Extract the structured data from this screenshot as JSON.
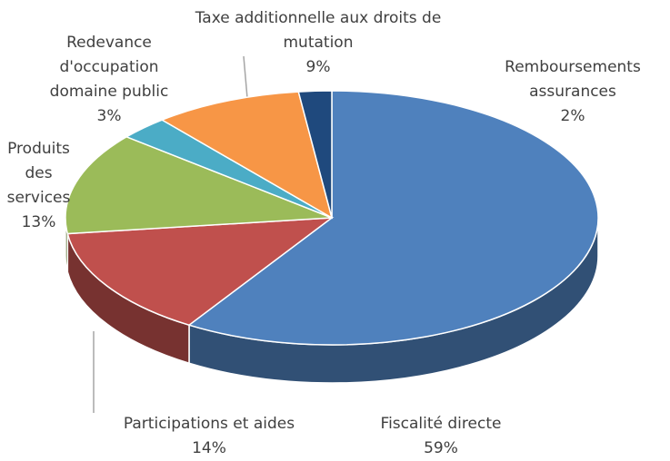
{
  "chart_data": {
    "type": "pie3d",
    "categories": [
      "Fiscalité directe",
      "Participations et aides",
      "Produits des services",
      "Redevance d'occupation domaine public",
      "Taxe additionnelle aux droits de mutation",
      "Remboursements assurances"
    ],
    "values": [
      59,
      14,
      13,
      3,
      9,
      2
    ],
    "value_labels": [
      "59%",
      "14%",
      "13%",
      "3%",
      "9%",
      "2%"
    ],
    "colors": [
      "#4f81bd",
      "#c0504d",
      "#9bbb59",
      "#4bacc6",
      "#f79646",
      "#1f497d"
    ]
  }
}
